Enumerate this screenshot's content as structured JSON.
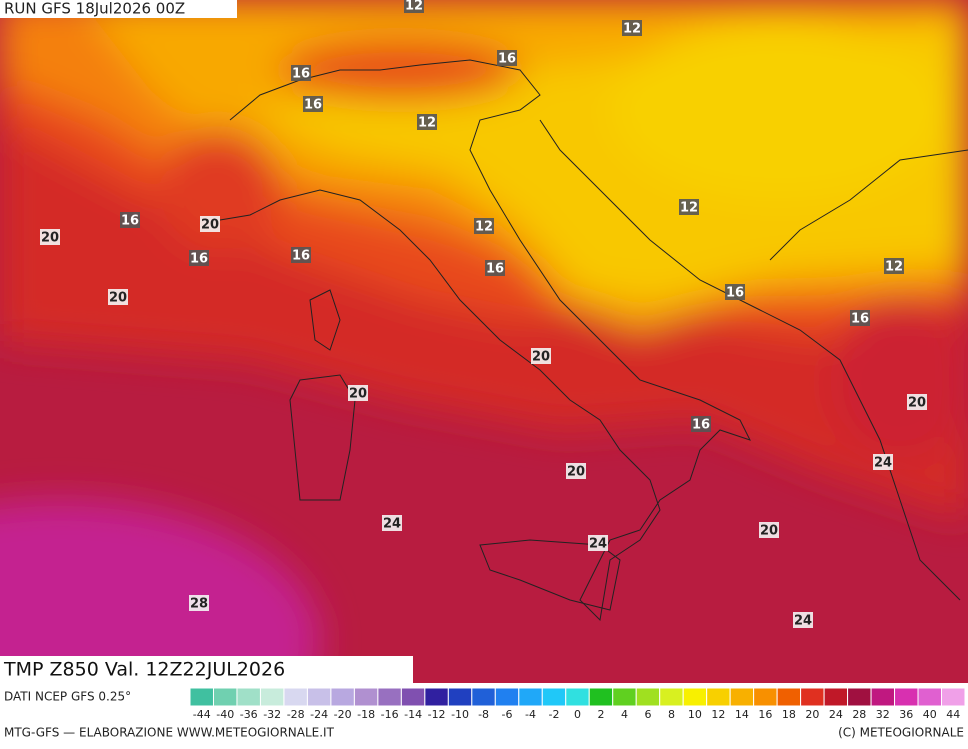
{
  "header": "RUN GFS 18Jul2026 00Z",
  "footer_title": "TMP Z850 Val. 12Z22JUL2026",
  "source": "DATI NCEP GFS 0.25°",
  "credit_left": "MTG-GFS — ELABORAZIONE WWW.METEOGIORNALE.IT",
  "credit_right": "(C) METEOGIORNALE",
  "contour_labels": [
    12,
    12,
    12,
    12,
    12,
    12,
    16,
    16,
    16,
    16,
    16,
    16,
    16,
    16,
    16,
    16,
    20,
    20,
    20,
    20,
    20,
    20,
    20,
    20,
    24,
    24,
    24,
    24,
    28
  ],
  "scale": {
    "labels": [
      -44,
      -40,
      -36,
      -32,
      -28,
      -24,
      -20,
      -18,
      -16,
      -14,
      -12,
      -10,
      -8,
      -6,
      -4,
      -2,
      0,
      2,
      4,
      6,
      8,
      10,
      12,
      14,
      16,
      18,
      20,
      24,
      28,
      32,
      36,
      40,
      44
    ],
    "colors": [
      "#40c0a0",
      "#70d0b0",
      "#a0e0c8",
      "#c8ecdc",
      "#d8d8f0",
      "#c8c0e8",
      "#b8a8e0",
      "#b090d0",
      "#9870c0",
      "#8050b0",
      "#3020a0",
      "#2040c0",
      "#2060d8",
      "#2080f0",
      "#20a8f8",
      "#20c8f8",
      "#30e0e0",
      "#20c020",
      "#60d020",
      "#a0e020",
      "#d8f020",
      "#f8f000",
      "#f8d000",
      "#f8b000",
      "#f89000",
      "#f06000",
      "#e03020",
      "#c01828",
      "#a01040",
      "#c01880",
      "#d830b0",
      "#e060d0",
      "#f0a0e8"
    ]
  }
}
